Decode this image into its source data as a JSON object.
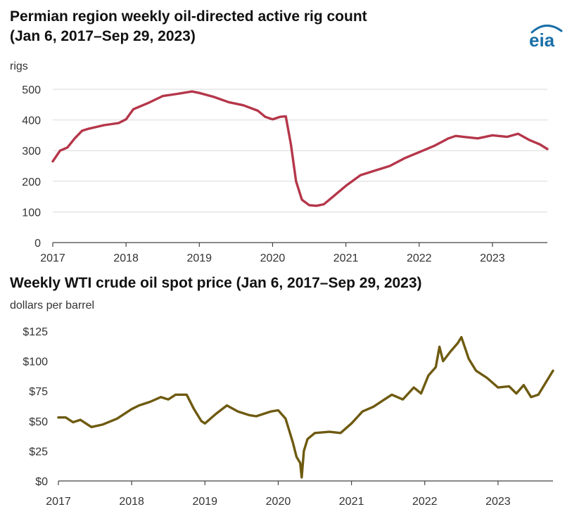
{
  "branding": {
    "logo_text": "eia",
    "logo_color": "#1a6fa8"
  },
  "chart_data": [
    {
      "type": "line",
      "title_line1": "Permian region weekly oil-directed active rig count",
      "title_line2": "(Jan 6, 2017–Sep 29, 2023)",
      "ylabel": "rigs",
      "xlim": [
        2017,
        2023.75
      ],
      "ylim": [
        0,
        500
      ],
      "yticks": [
        0,
        100,
        200,
        300,
        400,
        500
      ],
      "ytick_labels": [
        "0",
        "100",
        "200",
        "300",
        "400",
        "500"
      ],
      "xticks": [
        2017,
        2018,
        2019,
        2020,
        2021,
        2022,
        2023
      ],
      "xtick_labels": [
        "2017",
        "2018",
        "2019",
        "2020",
        "2021",
        "2022",
        "2023"
      ],
      "grid": true,
      "color": "#b5364a",
      "series": [
        {
          "x": [
            2017.0,
            2017.1,
            2017.2,
            2017.3,
            2017.4,
            2017.5,
            2017.7,
            2017.9,
            2018.0,
            2018.1,
            2018.3,
            2018.5,
            2018.7,
            2018.9,
            2019.0,
            2019.2,
            2019.4,
            2019.6,
            2019.8,
            2019.9,
            2020.0,
            2020.1,
            2020.18,
            2020.25,
            2020.32,
            2020.4,
            2020.5,
            2020.6,
            2020.7,
            2020.8,
            2020.9,
            2021.0,
            2021.2,
            2021.4,
            2021.6,
            2021.8,
            2022.0,
            2022.2,
            2022.4,
            2022.5,
            2022.6,
            2022.8,
            2023.0,
            2023.2,
            2023.35,
            2023.5,
            2023.65,
            2023.75
          ],
          "y": [
            265,
            300,
            310,
            340,
            365,
            372,
            383,
            390,
            402,
            435,
            455,
            478,
            485,
            493,
            488,
            475,
            458,
            448,
            430,
            410,
            402,
            410,
            412,
            320,
            200,
            140,
            122,
            120,
            125,
            145,
            165,
            185,
            220,
            235,
            250,
            275,
            295,
            315,
            340,
            348,
            345,
            340,
            350,
            345,
            355,
            335,
            320,
            305
          ]
        }
      ]
    },
    {
      "type": "line",
      "title": "Weekly WTI crude oil spot price (Jan 6, 2017–Sep 29, 2023)",
      "ylabel": "dollars per barrel",
      "xlim": [
        2017,
        2023.75
      ],
      "ylim": [
        0,
        125
      ],
      "yticks": [
        0,
        25,
        50,
        75,
        100,
        125
      ],
      "ytick_labels": [
        "$0",
        "$25",
        "$50",
        "$75",
        "$100",
        "$125"
      ],
      "xticks": [
        2017,
        2018,
        2019,
        2020,
        2021,
        2022,
        2023
      ],
      "xtick_labels": [
        "2017",
        "2018",
        "2019",
        "2020",
        "2021",
        "2022",
        "2023"
      ],
      "grid": false,
      "color": "#6e5a10",
      "series": [
        {
          "x": [
            2017.0,
            2017.1,
            2017.2,
            2017.3,
            2017.45,
            2017.6,
            2017.8,
            2018.0,
            2018.1,
            2018.25,
            2018.4,
            2018.5,
            2018.6,
            2018.75,
            2018.85,
            2018.95,
            2019.0,
            2019.15,
            2019.3,
            2019.45,
            2019.6,
            2019.7,
            2019.9,
            2020.0,
            2020.1,
            2020.2,
            2020.25,
            2020.3,
            2020.32,
            2020.35,
            2020.4,
            2020.5,
            2020.7,
            2020.85,
            2021.0,
            2021.15,
            2021.3,
            2021.45,
            2021.55,
            2021.7,
            2021.85,
            2021.95,
            2022.05,
            2022.15,
            2022.2,
            2022.25,
            2022.35,
            2022.45,
            2022.5,
            2022.6,
            2022.7,
            2022.85,
            2023.0,
            2023.15,
            2023.25,
            2023.35,
            2023.45,
            2023.55,
            2023.65,
            2023.75
          ],
          "y": [
            53,
            53,
            49,
            51,
            45,
            47,
            52,
            60,
            63,
            66,
            70,
            68,
            72,
            72,
            60,
            50,
            48,
            56,
            63,
            58,
            55,
            54,
            58,
            59,
            52,
            32,
            20,
            15,
            3,
            25,
            35,
            40,
            41,
            40,
            48,
            58,
            62,
            68,
            72,
            68,
            78,
            73,
            88,
            95,
            112,
            100,
            108,
            115,
            120,
            102,
            92,
            86,
            78,
            79,
            73,
            80,
            70,
            72,
            82,
            92
          ]
        }
      ]
    }
  ]
}
